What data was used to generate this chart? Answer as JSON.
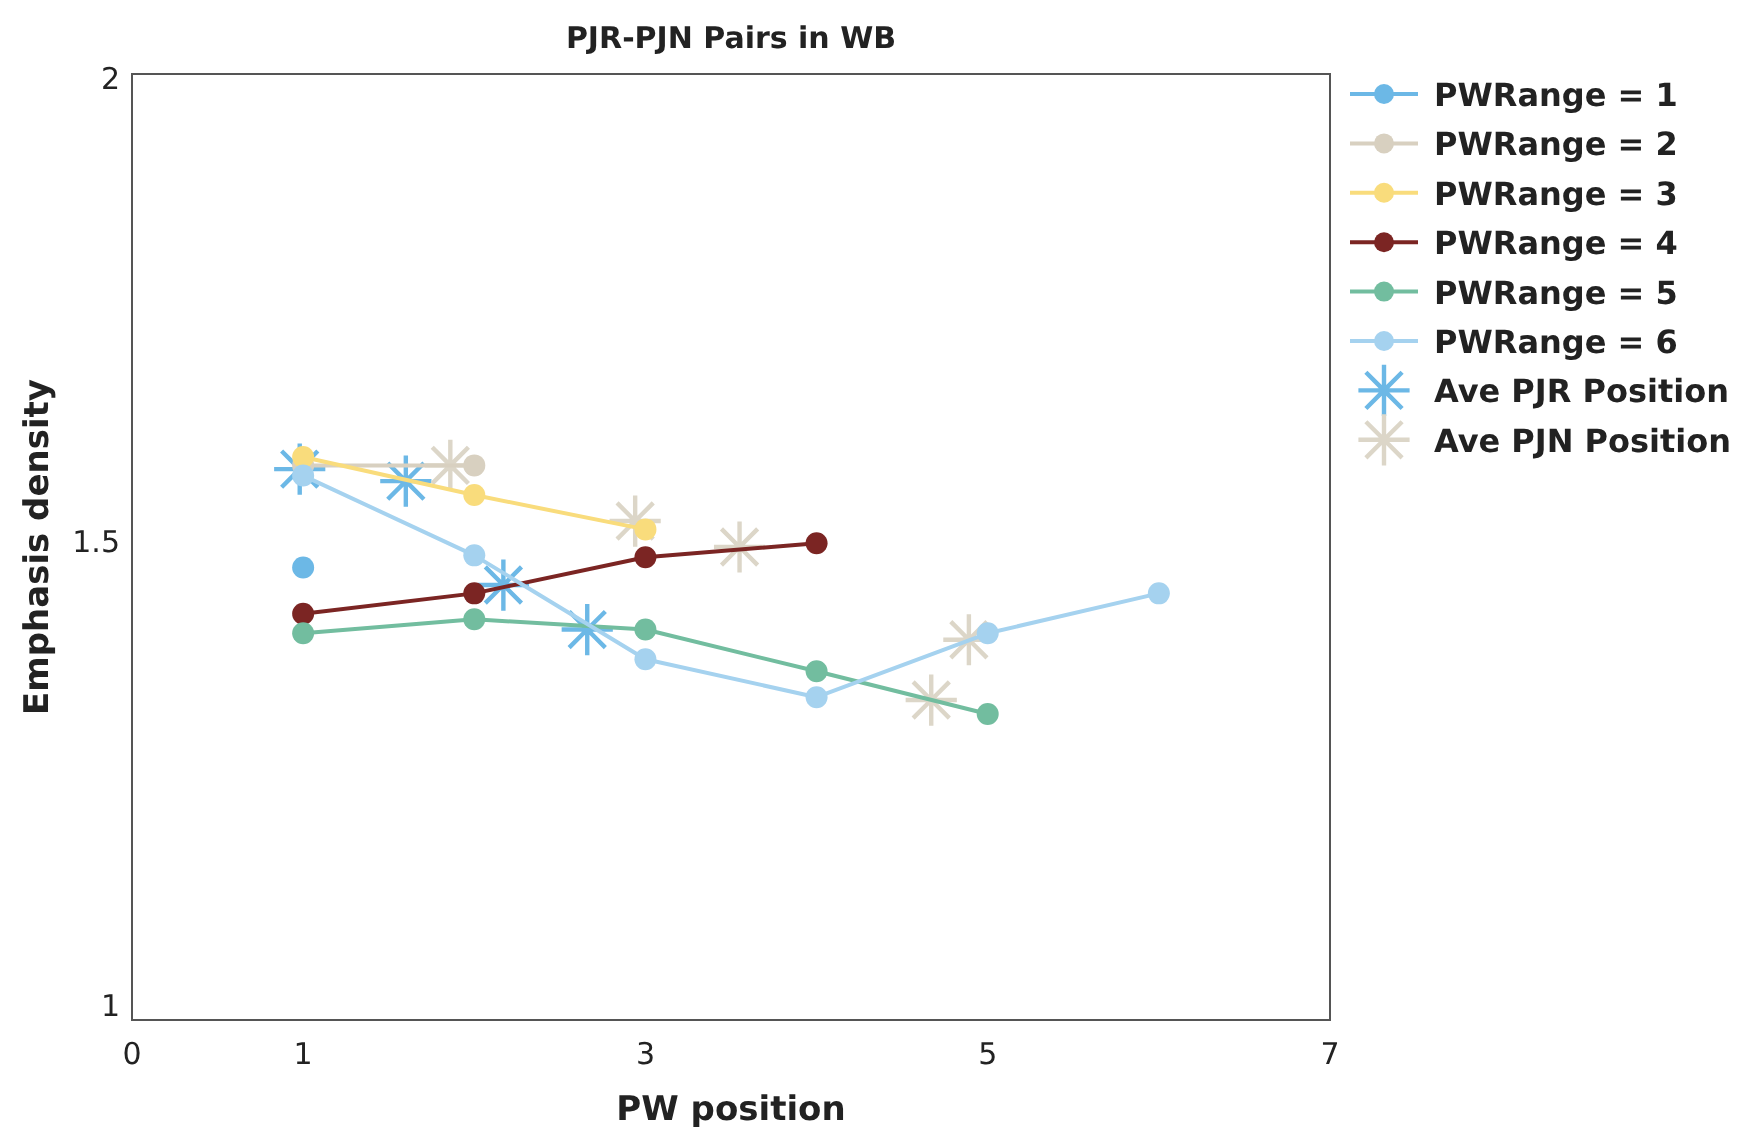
{
  "chart_data": {
    "type": "line",
    "title": "PJR-PJN Pairs in WB",
    "xlabel": "PW position",
    "ylabel": "Emphasis density",
    "xlim": [
      0,
      7
    ],
    "xticks": [
      0,
      1,
      3,
      5,
      7
    ],
    "ylim": [
      0.985,
      2.005
    ],
    "yticks": [
      1,
      1.5,
      2
    ],
    "grid": false,
    "legend": "right",
    "marker": "circle",
    "line_style": "solid",
    "series": [
      {
        "name": "PWRange = 1",
        "color": "#6cb8e6",
        "x": [
          1
        ],
        "values": [
          1.473
        ]
      },
      {
        "name": "PWRange = 2",
        "color": "#d8d0c0",
        "x": [
          1,
          2
        ],
        "values": [
          1.583,
          1.583
        ]
      },
      {
        "name": "PWRange = 3",
        "color": "#f9dc7c",
        "x": [
          1,
          2,
          3
        ],
        "values": [
          1.592,
          1.551,
          1.514
        ]
      },
      {
        "name": "PWRange = 4",
        "color": "#7b2523",
        "x": [
          1,
          2,
          3,
          4
        ],
        "values": [
          1.423,
          1.445,
          1.484,
          1.499
        ]
      },
      {
        "name": "PWRange = 5",
        "color": "#72bd9f",
        "x": [
          1,
          2,
          3,
          4,
          5
        ],
        "values": [
          1.402,
          1.417,
          1.406,
          1.361,
          1.315
        ]
      },
      {
        "name": "PWRange = 6",
        "color": "#a5d2ef",
        "x": [
          1,
          2,
          3,
          4,
          5,
          6
        ],
        "values": [
          1.572,
          1.486,
          1.374,
          1.333,
          1.402,
          1.445
        ]
      },
      {
        "name": "Ave PJR Position",
        "type": "scatter",
        "marker": "star",
        "color": "#6cb8e6",
        "x": [
          0.98,
          1.6,
          2.17,
          2.66
        ],
        "values": [
          1.579,
          1.566,
          1.454,
          1.406
        ]
      },
      {
        "name": "Ave PJN Position",
        "type": "scatter",
        "marker": "star",
        "color": "#dcd6c8",
        "x": [
          1.86,
          2.94,
          3.55,
          4.89,
          4.67
        ],
        "values": [
          1.583,
          1.523,
          1.495,
          1.395,
          1.33
        ]
      }
    ]
  }
}
